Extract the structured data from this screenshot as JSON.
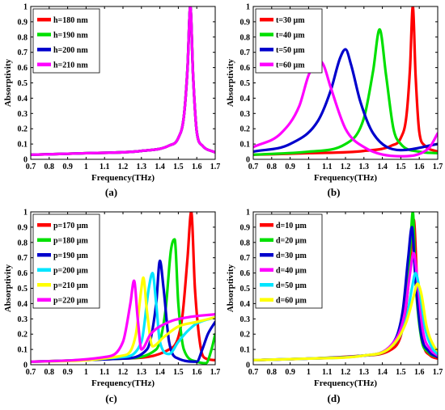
{
  "chart_data": [
    {
      "panel": "(a)",
      "type": "line",
      "xlabel": "Frequency(THz)",
      "ylabel": "Absorptivity",
      "xlim": [
        0.7,
        1.7
      ],
      "ylim": [
        0,
        1
      ],
      "xticks": [
        "0.7",
        "0.8",
        "0.9",
        "1",
        "1.1",
        "1.2",
        "1.3",
        "1.4",
        "1.5",
        "1.6",
        "1.7"
      ],
      "yticks": [
        "0",
        "0.1",
        "0.2",
        "0.3",
        "0.4",
        "0.5",
        "0.6",
        "0.7",
        "0.8",
        "0.9",
        "1"
      ],
      "legend_position": "top-left",
      "grid": false,
      "series": [
        {
          "name": "h=180 nm",
          "color": "#ff0000",
          "x": [
            0.7,
            1.0,
            1.3,
            1.45,
            1.5,
            1.53,
            1.55,
            1.565,
            1.58,
            1.6,
            1.63,
            1.7
          ],
          "y": [
            0.03,
            0.04,
            0.055,
            0.09,
            0.14,
            0.28,
            0.6,
            1.0,
            0.55,
            0.18,
            0.09,
            0.045
          ]
        },
        {
          "name": "h=190 nm",
          "color": "#00e000",
          "x": [
            0.7,
            1.0,
            1.3,
            1.45,
            1.5,
            1.53,
            1.55,
            1.565,
            1.58,
            1.6,
            1.63,
            1.7
          ],
          "y": [
            0.03,
            0.04,
            0.055,
            0.09,
            0.14,
            0.28,
            0.6,
            1.0,
            0.55,
            0.18,
            0.09,
            0.045
          ]
        },
        {
          "name": "h=200 nm",
          "color": "#0000cc",
          "x": [
            0.7,
            1.0,
            1.3,
            1.45,
            1.5,
            1.53,
            1.55,
            1.565,
            1.58,
            1.6,
            1.63,
            1.7
          ],
          "y": [
            0.03,
            0.04,
            0.055,
            0.09,
            0.14,
            0.28,
            0.6,
            1.0,
            0.55,
            0.18,
            0.09,
            0.045
          ]
        },
        {
          "name": "h=210 nm",
          "color": "#ff00ff",
          "x": [
            0.7,
            1.0,
            1.3,
            1.45,
            1.5,
            1.53,
            1.55,
            1.565,
            1.58,
            1.6,
            1.63,
            1.7
          ],
          "y": [
            0.03,
            0.04,
            0.055,
            0.09,
            0.14,
            0.28,
            0.6,
            1.0,
            0.55,
            0.18,
            0.09,
            0.045
          ]
        }
      ]
    },
    {
      "panel": "(b)",
      "type": "line",
      "xlabel": "Frequency(THz)",
      "ylabel": "Absorptivity",
      "xlim": [
        0.7,
        1.7
      ],
      "ylim": [
        0,
        1
      ],
      "xticks": [
        "0.7",
        "0.8",
        "0.9",
        "1",
        "1.1",
        "1.2",
        "1.3",
        "1.4",
        "1.5",
        "1.6",
        "1.7"
      ],
      "yticks": [
        "0",
        "0.1",
        "0.2",
        "0.3",
        "0.4",
        "0.5",
        "0.6",
        "0.7",
        "0.8",
        "0.9",
        "1"
      ],
      "legend_position": "top-left",
      "grid": false,
      "series": [
        {
          "name": "t=30 µm",
          "color": "#ff0000",
          "x": [
            0.7,
            1.0,
            1.3,
            1.45,
            1.5,
            1.53,
            1.55,
            1.565,
            1.58,
            1.6,
            1.63,
            1.7
          ],
          "y": [
            0.03,
            0.04,
            0.055,
            0.09,
            0.14,
            0.28,
            0.6,
            1.0,
            0.55,
            0.18,
            0.09,
            0.05
          ]
        },
        {
          "name": "t=40 µm",
          "color": "#00e000",
          "x": [
            0.7,
            1.0,
            1.2,
            1.3,
            1.35,
            1.385,
            1.42,
            1.46,
            1.5,
            1.6,
            1.7
          ],
          "y": [
            0.03,
            0.05,
            0.1,
            0.27,
            0.58,
            0.85,
            0.55,
            0.2,
            0.1,
            0.05,
            0.04
          ]
        },
        {
          "name": "t=50 µm",
          "color": "#0000cc",
          "x": [
            0.7,
            0.9,
            1.05,
            1.12,
            1.17,
            1.2,
            1.23,
            1.28,
            1.35,
            1.5,
            1.7
          ],
          "y": [
            0.05,
            0.1,
            0.25,
            0.45,
            0.66,
            0.72,
            0.62,
            0.38,
            0.17,
            0.06,
            0.1
          ]
        },
        {
          "name": "t=60 µm",
          "color": "#ff00ff",
          "x": [
            0.7,
            0.85,
            0.95,
            1.0,
            1.05,
            1.08,
            1.12,
            1.2,
            1.3,
            1.5,
            1.65,
            1.7
          ],
          "y": [
            0.08,
            0.17,
            0.35,
            0.55,
            0.65,
            0.62,
            0.47,
            0.2,
            0.08,
            0.02,
            0.07,
            0.17
          ]
        }
      ]
    },
    {
      "panel": "(c)",
      "type": "line",
      "xlabel": "Frequency(THz)",
      "ylabel": "Absorptivity",
      "xlim": [
        0.7,
        1.7
      ],
      "ylim": [
        0,
        1
      ],
      "xticks": [
        "0.7",
        "0.8",
        "0.9",
        "1",
        "1.1",
        "1.2",
        "1.3",
        "1.4",
        "1.5",
        "1.6",
        "1.7"
      ],
      "yticks": [
        "0",
        "0.1",
        "0.2",
        "0.3",
        "0.4",
        "0.5",
        "0.6",
        "0.7",
        "0.8",
        "0.9",
        "1"
      ],
      "legend_position": "top-left",
      "grid": false,
      "series": [
        {
          "name": "p=170 µm",
          "color": "#ff0000",
          "x": [
            0.7,
            1.2,
            1.45,
            1.52,
            1.55,
            1.57,
            1.59,
            1.62,
            1.65,
            1.7
          ],
          "y": [
            0.02,
            0.04,
            0.1,
            0.3,
            0.7,
            1.0,
            0.5,
            0.12,
            0.04,
            0.03
          ]
        },
        {
          "name": "p=180 µm",
          "color": "#00e000",
          "x": [
            0.7,
            1.2,
            1.38,
            1.43,
            1.46,
            1.48,
            1.5,
            1.53,
            1.6,
            1.65,
            1.68,
            1.7
          ],
          "y": [
            0.02,
            0.04,
            0.1,
            0.35,
            0.75,
            0.82,
            0.4,
            0.1,
            0.02,
            0.01,
            0.1,
            0.2
          ]
        },
        {
          "name": "p=190 µm",
          "color": "#0000cc",
          "x": [
            0.7,
            1.2,
            1.33,
            1.38,
            1.4,
            1.42,
            1.45,
            1.5,
            1.6,
            1.63,
            1.66,
            1.7
          ],
          "y": [
            0.02,
            0.04,
            0.1,
            0.4,
            0.68,
            0.5,
            0.15,
            0.04,
            0.02,
            0.1,
            0.2,
            0.28
          ]
        },
        {
          "name": "p=200 µm",
          "color": "#00e5ff",
          "x": [
            0.7,
            1.2,
            1.3,
            1.34,
            1.36,
            1.38,
            1.4,
            1.45,
            1.5,
            1.55,
            1.6,
            1.7
          ],
          "y": [
            0.02,
            0.05,
            0.15,
            0.5,
            0.6,
            0.4,
            0.15,
            0.07,
            0.15,
            0.22,
            0.27,
            0.31
          ]
        },
        {
          "name": "p=210 µm",
          "color": "#ffff00",
          "x": [
            0.7,
            1.2,
            1.27,
            1.3,
            1.31,
            1.33,
            1.36,
            1.42,
            1.5,
            1.6,
            1.7
          ],
          "y": [
            0.02,
            0.06,
            0.2,
            0.5,
            0.57,
            0.35,
            0.12,
            0.18,
            0.25,
            0.28,
            0.31
          ]
        },
        {
          "name": "p=220 µm",
          "color": "#ff00ff",
          "x": [
            0.7,
            1.1,
            1.2,
            1.24,
            1.26,
            1.28,
            1.3,
            1.35,
            1.45,
            1.55,
            1.7
          ],
          "y": [
            0.02,
            0.05,
            0.15,
            0.4,
            0.55,
            0.3,
            0.1,
            0.2,
            0.28,
            0.31,
            0.33
          ]
        }
      ]
    },
    {
      "panel": "(d)",
      "type": "line",
      "xlabel": "Frequency(THz)",
      "ylabel": "Absorptivity",
      "xlim": [
        0.7,
        1.7
      ],
      "ylim": [
        0,
        1
      ],
      "xticks": [
        "0.7",
        "0.8",
        "0.9",
        "1",
        "1.1",
        "1.2",
        "1.3",
        "1.4",
        "1.5",
        "1.6",
        "1.7"
      ],
      "yticks": [
        "0",
        "0.1",
        "0.2",
        "0.3",
        "0.4",
        "0.5",
        "0.6",
        "0.7",
        "0.8",
        "0.9",
        "1"
      ],
      "legend_position": "top-left",
      "grid": false,
      "series": [
        {
          "name": "d=10 µm",
          "color": "#ff0000",
          "x": [
            0.7,
            1.0,
            1.3,
            1.45,
            1.52,
            1.55,
            1.57,
            1.59,
            1.62,
            1.66,
            1.7
          ],
          "y": [
            0.03,
            0.04,
            0.06,
            0.1,
            0.3,
            0.65,
            0.95,
            0.5,
            0.15,
            0.06,
            0.04
          ]
        },
        {
          "name": "d=20 µm",
          "color": "#00e000",
          "x": [
            0.7,
            1.0,
            1.3,
            1.45,
            1.52,
            1.55,
            1.565,
            1.58,
            1.61,
            1.65,
            1.7
          ],
          "y": [
            0.03,
            0.04,
            0.06,
            0.12,
            0.35,
            0.75,
            1.0,
            0.55,
            0.18,
            0.08,
            0.05
          ]
        },
        {
          "name": "d=30 µm",
          "color": "#0000cc",
          "x": [
            0.7,
            1.0,
            1.3,
            1.45,
            1.51,
            1.54,
            1.56,
            1.58,
            1.61,
            1.65,
            1.7
          ],
          "y": [
            0.03,
            0.04,
            0.06,
            0.13,
            0.35,
            0.7,
            0.9,
            0.55,
            0.2,
            0.09,
            0.05
          ]
        },
        {
          "name": "d=40 µm",
          "color": "#ff00ff",
          "x": [
            0.7,
            1.0,
            1.3,
            1.45,
            1.52,
            1.55,
            1.57,
            1.59,
            1.62,
            1.66,
            1.7
          ],
          "y": [
            0.03,
            0.04,
            0.06,
            0.13,
            0.33,
            0.6,
            0.73,
            0.55,
            0.22,
            0.1,
            0.06
          ]
        },
        {
          "name": "d=50 µm",
          "color": "#00e5ff",
          "x": [
            0.7,
            1.0,
            1.3,
            1.45,
            1.53,
            1.56,
            1.58,
            1.6,
            1.63,
            1.67,
            1.7
          ],
          "y": [
            0.03,
            0.04,
            0.06,
            0.12,
            0.3,
            0.5,
            0.6,
            0.5,
            0.25,
            0.11,
            0.07
          ]
        },
        {
          "name": "d=60 µm",
          "color": "#ffff00",
          "x": [
            0.7,
            1.0,
            1.3,
            1.45,
            1.53,
            1.57,
            1.59,
            1.61,
            1.64,
            1.68,
            1.7
          ],
          "y": [
            0.03,
            0.04,
            0.06,
            0.12,
            0.28,
            0.45,
            0.53,
            0.47,
            0.25,
            0.12,
            0.09
          ]
        }
      ]
    }
  ]
}
